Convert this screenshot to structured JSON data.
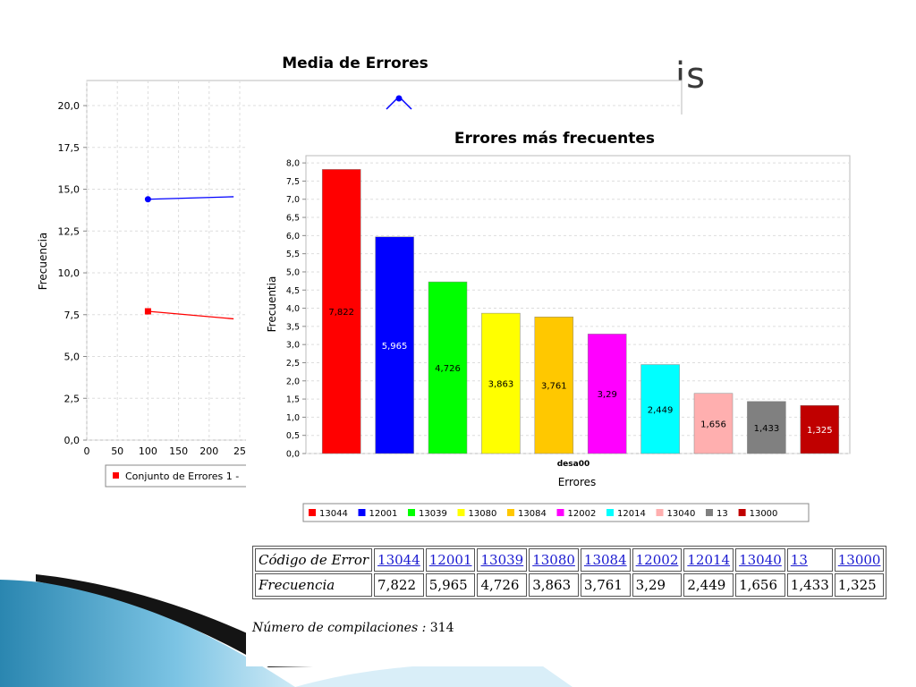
{
  "slide": {
    "title_fragment": "is"
  },
  "chart_data": [
    {
      "type": "line",
      "title": "Media de Errores",
      "xlabel": "",
      "ylabel": "Frecuencia",
      "xlim": [
        0,
        250
      ],
      "ylim": [
        0,
        21.5
      ],
      "x_ticks": [
        "0",
        "50",
        "100",
        "150",
        "200",
        "25"
      ],
      "y_ticks": [
        "0,0",
        "2,5",
        "5,0",
        "7,5",
        "10,0",
        "12,5",
        "15,0",
        "17,5",
        "20,0"
      ],
      "series": [
        {
          "color": "#0000ff",
          "marker": "circle",
          "x": [
            100,
            240
          ],
          "y": [
            14.4,
            14.55
          ]
        },
        {
          "color": "#ff0000",
          "marker": "square",
          "x": [
            100,
            240
          ],
          "y": [
            7.7,
            7.25
          ]
        }
      ],
      "legend": {
        "placement": "bottom",
        "entries": [
          {
            "label": "Conjunto de Errores 1 -",
            "color": "#ff0000"
          }
        ]
      }
    },
    {
      "type": "bar",
      "title": "Errores más frecuentes",
      "xlabel": "Errores",
      "ylabel": "Frecuentia",
      "category_label": "desa00",
      "ylim": [
        0,
        8.2
      ],
      "y_ticks": [
        "0,0",
        "0,5",
        "1,0",
        "1,5",
        "2,0",
        "2,5",
        "3,0",
        "3,5",
        "4,0",
        "4,5",
        "5,0",
        "5,5",
        "6,0",
        "6,5",
        "7,0",
        "7,5",
        "8,0"
      ],
      "categories": [
        "13044",
        "12001",
        "13039",
        "13080",
        "13084",
        "12002",
        "12014",
        "13040",
        "13",
        "13000"
      ],
      "values": [
        7.822,
        5.965,
        4.726,
        3.863,
        3.761,
        3.29,
        2.449,
        1.656,
        1.433,
        1.325
      ],
      "value_labels": [
        "7,822",
        "5,965",
        "4,726",
        "3,863",
        "3,761",
        "3,29",
        "2,449",
        "1,656",
        "1,433",
        "1,325"
      ],
      "colors": [
        "#ff0000",
        "#0000ff",
        "#00ff00",
        "#ffff00",
        "#ffc800",
        "#ff00ff",
        "#00ffff",
        "#ffafaf",
        "#808080",
        "#c00000"
      ],
      "label_colors": [
        "#000000",
        "#ffffff",
        "#000000",
        "#000000",
        "#000000",
        "#000000",
        "#000000",
        "#000000",
        "#000000",
        "#ffffff"
      ],
      "legend": {
        "placement": "bottom"
      }
    }
  ],
  "error_table": {
    "header_label": "Código de Error",
    "value_label": "Frecuencia",
    "codes": [
      "13044",
      "12001",
      "13039",
      "13080",
      "13084",
      "12002",
      "12014",
      "13040",
      "13",
      "13000"
    ],
    "frequencies": [
      "7,822",
      "5,965",
      "4,726",
      "3,863",
      "3,761",
      "3,29",
      "2,449",
      "1,656",
      "1,433",
      "1,325"
    ]
  },
  "compilations": {
    "label": "Número de compilaciones :",
    "value": "314"
  }
}
